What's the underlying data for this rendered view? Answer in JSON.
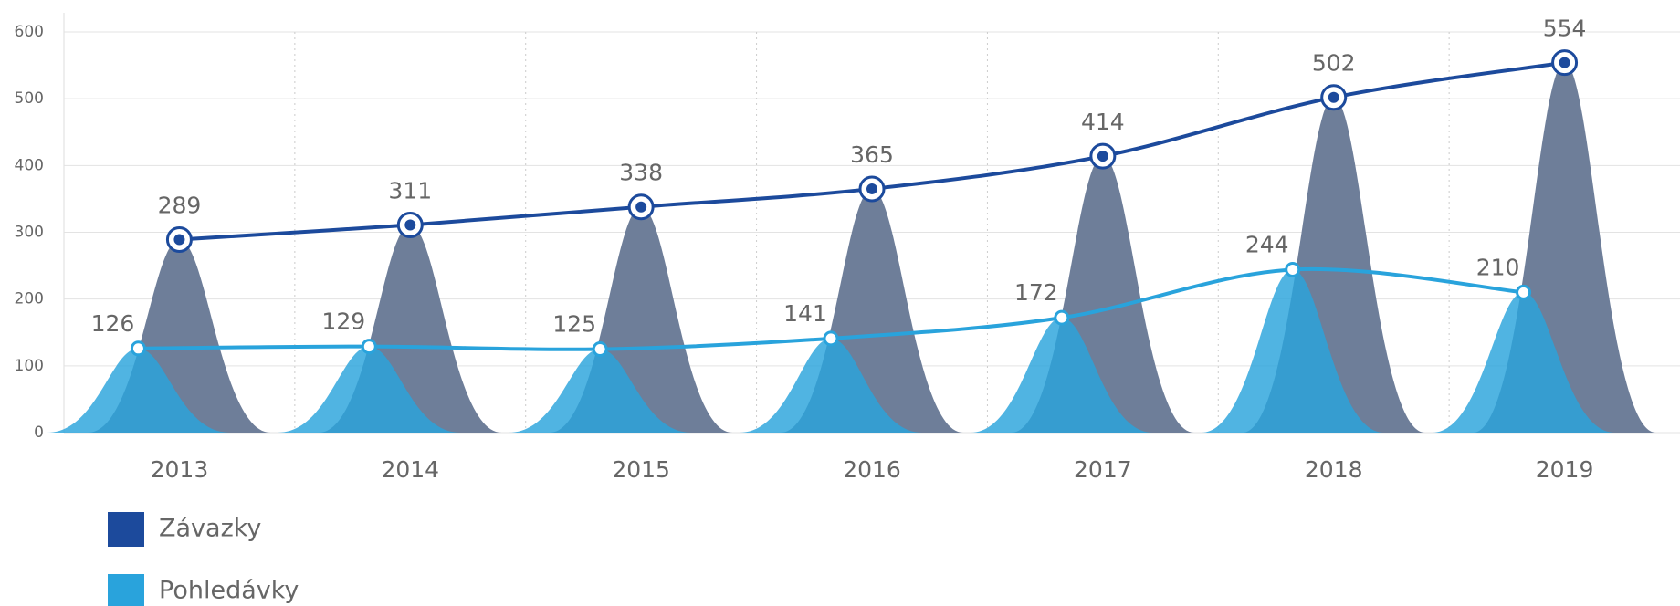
{
  "chart_data": {
    "type": "area-line",
    "categories": [
      "2013",
      "2014",
      "2015",
      "2016",
      "2017",
      "2018",
      "2019"
    ],
    "series": [
      {
        "name": "Závazky",
        "color": "#1c4a9c",
        "area_color": "#6e7e99",
        "values": [
          289,
          311,
          338,
          365,
          414,
          502,
          554
        ]
      },
      {
        "name": "Pohledávky",
        "color": "#29a3dc",
        "area_color": "#29a3dc",
        "values": [
          126,
          129,
          125,
          141,
          172,
          244,
          210
        ]
      }
    ],
    "ylim": [
      0,
      600
    ],
    "yticks": [
      0,
      100,
      200,
      300,
      400,
      500,
      600
    ],
    "grid": true
  }
}
